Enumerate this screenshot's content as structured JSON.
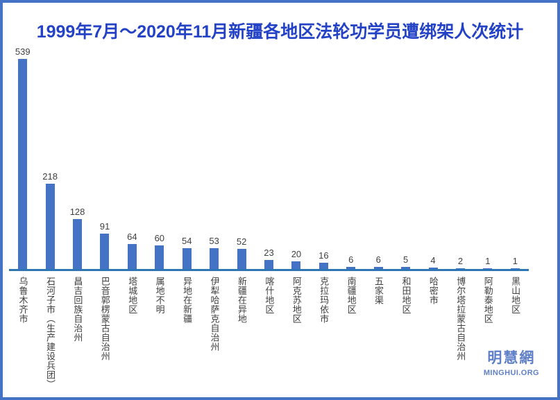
{
  "frame": {
    "border_color": "#4472C4",
    "background": "#FFFFFF"
  },
  "chart_data": {
    "type": "bar",
    "title": "1999年7月～2020年11月新疆各地区法轮功学员遭绑架人次统计",
    "categories": [
      "乌鲁木齐市",
      "石河子市（生产建设兵团）",
      "昌吉回族自治州",
      "巴音郭楞蒙古自治州",
      "塔城地区",
      "属地不明",
      "异地在新疆",
      "伊犁哈萨克自治州",
      "新疆在异地",
      "喀什地区",
      "阿克苏地区",
      "克拉玛依市",
      "南疆地区",
      "五家渠",
      "和田地区",
      "哈密市",
      "博尔塔拉蒙古自治州",
      "阿勒泰地区",
      "黑山地区"
    ],
    "values": [
      539,
      218,
      128,
      91,
      64,
      60,
      54,
      53,
      52,
      23,
      20,
      16,
      6,
      6,
      5,
      4,
      2,
      1,
      1
    ],
    "xlabel": "",
    "ylabel": "",
    "y_axis_visible": false,
    "x_axis_line": true,
    "grid": false,
    "legend": false,
    "value_labels_position": "above bars",
    "category_label_orientation": "vertical",
    "title_color": "#2442C6",
    "bar_color": "#4472C4",
    "axis_line_color": "#2E75B6",
    "label_color": "#404040"
  },
  "watermark": {
    "chinese": "明慧網",
    "english": "MINGHUI.ORG",
    "color": "#5F7FC7"
  }
}
